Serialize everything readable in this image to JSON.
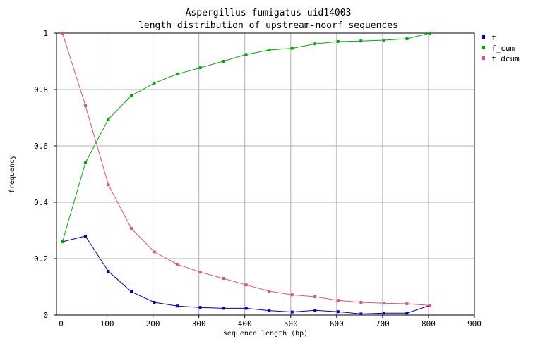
{
  "chart_data": {
    "type": "line",
    "title": "Aspergillus fumigatus uid14003",
    "subtitle": "length distribution of upstream-noorf sequences",
    "xlabel": "sequence length (bp)",
    "ylabel": "frequency",
    "xlim": [
      -10,
      900
    ],
    "ylim": [
      0,
      1
    ],
    "xticks": [
      0,
      100,
      200,
      300,
      400,
      500,
      600,
      700,
      800,
      900
    ],
    "yticks": [
      0,
      0.2,
      0.4,
      0.6,
      0.8,
      1
    ],
    "ytick_labels": [
      "0",
      "0.2",
      "0.4",
      "0.6",
      "0.8",
      "1"
    ],
    "grid": true,
    "legend_position": "top-right",
    "x": [
      3,
      53,
      103,
      153,
      203,
      253,
      303,
      353,
      403,
      453,
      503,
      553,
      603,
      653,
      703,
      753,
      803
    ],
    "series": [
      {
        "name": "f",
        "color": "#0000cc",
        "values": [
          0.26,
          0.28,
          0.155,
          0.083,
          0.045,
          0.032,
          0.027,
          0.024,
          0.024,
          0.016,
          0.011,
          0.017,
          0.012,
          0.004,
          0.007,
          0.007,
          0.034
        ]
      },
      {
        "name": "f_cum",
        "color": "#00aa00",
        "values": [
          0.26,
          0.54,
          0.695,
          0.778,
          0.823,
          0.855,
          0.877,
          0.9,
          0.924,
          0.94,
          0.946,
          0.962,
          0.97,
          0.972,
          0.975,
          0.98,
          1.0
        ]
      },
      {
        "name": "f_dcum",
        "color": "#e0507a",
        "values": [
          1.0,
          0.743,
          0.462,
          0.307,
          0.224,
          0.18,
          0.152,
          0.13,
          0.107,
          0.085,
          0.072,
          0.065,
          0.052,
          0.045,
          0.042,
          0.04,
          0.034
        ]
      }
    ]
  }
}
